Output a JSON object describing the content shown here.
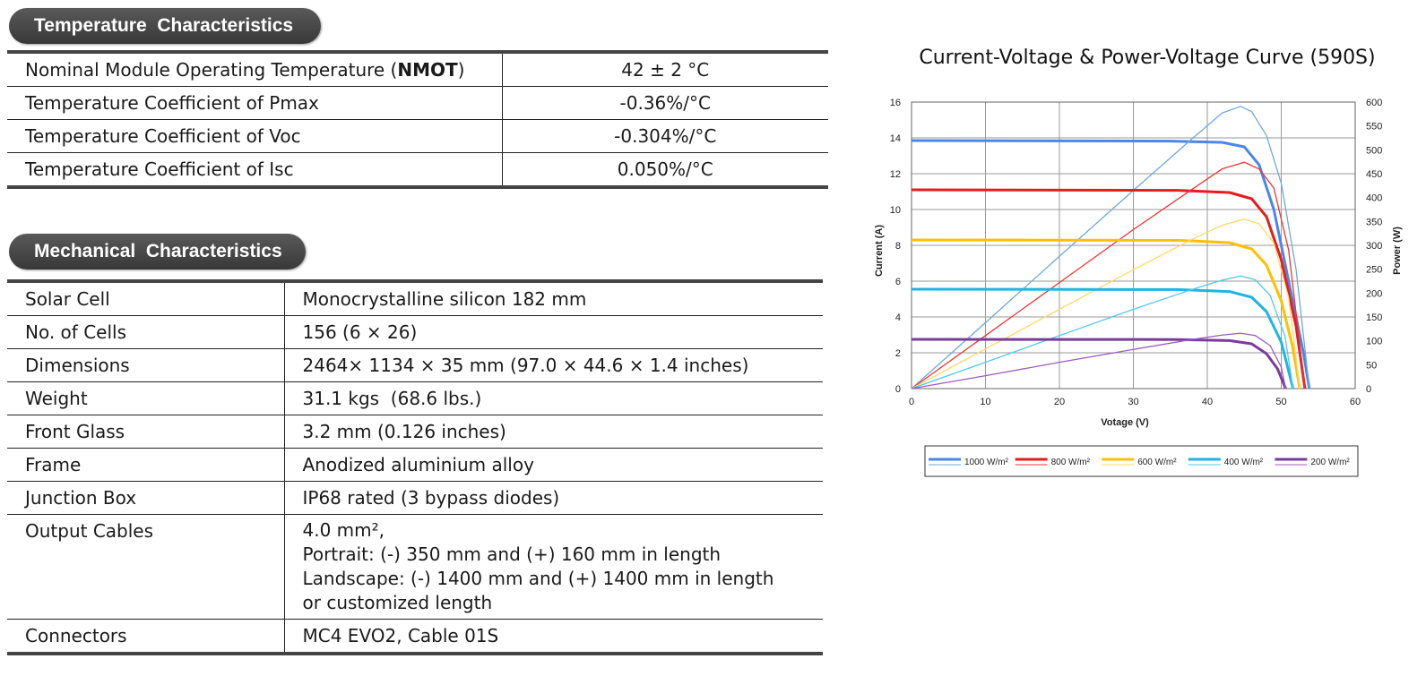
{
  "temperature": {
    "title": "Temperature  Characteristics",
    "rows": [
      {
        "label_pre": "Nominal Module Operating Temperature (",
        "label_bold": "NMOT",
        "label_post": ")",
        "value": "42 ± 2 °C"
      },
      {
        "label": "Temperature Coefficient of Pmax",
        "value": "-0.36%/°C"
      },
      {
        "label": "Temperature Coefficient of Voc",
        "value": "-0.304%/°C"
      },
      {
        "label": "Temperature Coefficient of Isc",
        "value": "0.050%/°C"
      }
    ]
  },
  "mechanical": {
    "title": "Mechanical  Characteristics",
    "rows": [
      {
        "label": "Solar Cell",
        "value": "Monocrystalline silicon 182 mm"
      },
      {
        "label": "No. of Cells",
        "value": "156 (6 × 26)"
      },
      {
        "label": "Dimensions",
        "value": "2464× 1134 × 35 mm (97.0 × 44.6 × 1.4 inches)"
      },
      {
        "label": "Weight",
        "value": "31.1 kgs  (68.6 lbs.)"
      },
      {
        "label": "Front Glass",
        "value": "3.2 mm (0.126 inches)"
      },
      {
        "label": "Frame",
        "value": "Anodized aluminium alloy"
      },
      {
        "label": "Junction Box",
        "value": "IP68 rated (3 bypass diodes)"
      },
      {
        "label": "Output Cables",
        "value_lines": [
          "4.0 mm²,",
          "Portrait: (-) 350 mm and (+) 160 mm in length",
          "Landscape: (-) 1400 mm and (+) 1400 mm in length",
          "or customized length"
        ]
      },
      {
        "label": "Connectors",
        "value": "MC4 EVO2, Cable 01S"
      }
    ]
  },
  "chart_data": {
    "type": "line",
    "title": "Current-Voltage & Power-Voltage Curve (590S)",
    "xlabel": "Votage (V)",
    "ylabel": "Current (A)",
    "y2label": "Power (W)",
    "xlim": [
      0,
      60
    ],
    "ylim": [
      0,
      16
    ],
    "y2lim": [
      0,
      600
    ],
    "xticks": [
      "0",
      "10",
      "20",
      "30",
      "40",
      "50",
      "60"
    ],
    "yticks": [
      "0",
      "2",
      "4",
      "6",
      "8",
      "10",
      "12",
      "14",
      "16"
    ],
    "y2ticks": [
      "0",
      "50",
      "100",
      "150",
      "200",
      "250",
      "300",
      "350",
      "400",
      "450",
      "500",
      "550",
      "600"
    ],
    "grid": true,
    "legend_position": "bottom",
    "series": [
      {
        "name": "1000 W/m²",
        "color": "#4a86e8",
        "power_color": "#6fa8dc",
        "isc": 13.85,
        "voc": 53.8,
        "iv_knee": [
          [
            0,
            13.85
          ],
          [
            35,
            13.82
          ],
          [
            42,
            13.75
          ],
          [
            45,
            13.5
          ],
          [
            47,
            12.5
          ],
          [
            49,
            10
          ],
          [
            51,
            6
          ],
          [
            53,
            2
          ],
          [
            53.8,
            0
          ]
        ],
        "pv": [
          [
            0,
            0
          ],
          [
            10,
            138
          ],
          [
            20,
            277
          ],
          [
            30,
            415
          ],
          [
            38,
            524
          ],
          [
            42,
            577
          ],
          [
            44.5,
            591
          ],
          [
            46,
            580
          ],
          [
            48,
            530
          ],
          [
            50,
            430
          ],
          [
            52,
            250
          ],
          [
            53.8,
            0
          ]
        ]
      },
      {
        "name": "800 W/m²",
        "color": "#e81c1c",
        "power_color": "#ee3333",
        "isc": 11.1,
        "voc": 53.2,
        "iv_knee": [
          [
            0,
            11.1
          ],
          [
            36,
            11.07
          ],
          [
            43,
            10.95
          ],
          [
            46,
            10.6
          ],
          [
            48,
            9.6
          ],
          [
            50,
            7.2
          ],
          [
            52,
            3.5
          ],
          [
            53.2,
            0
          ]
        ],
        "pv": [
          [
            0,
            0
          ],
          [
            10,
            111
          ],
          [
            20,
            222
          ],
          [
            30,
            333
          ],
          [
            38,
            418
          ],
          [
            42,
            460
          ],
          [
            45,
            474
          ],
          [
            47,
            460
          ],
          [
            49,
            420
          ],
          [
            51,
            290
          ],
          [
            53.2,
            0
          ]
        ]
      },
      {
        "name": "600 W/m²",
        "color": "#ffc000",
        "power_color": "#ffd966",
        "isc": 8.3,
        "voc": 52.5,
        "iv_knee": [
          [
            0,
            8.3
          ],
          [
            36,
            8.28
          ],
          [
            43,
            8.15
          ],
          [
            46,
            7.8
          ],
          [
            48,
            6.9
          ],
          [
            50,
            4.9
          ],
          [
            51.5,
            2.4
          ],
          [
            52.5,
            0
          ]
        ],
        "pv": [
          [
            0,
            0
          ],
          [
            10,
            83
          ],
          [
            20,
            166
          ],
          [
            30,
            249
          ],
          [
            38,
            313
          ],
          [
            42,
            342
          ],
          [
            45,
            355
          ],
          [
            47,
            345
          ],
          [
            49,
            305
          ],
          [
            51,
            190
          ],
          [
            52.5,
            0
          ]
        ]
      },
      {
        "name": "400 W/m²",
        "color": "#1eb4e6",
        "power_color": "#4fc9ef",
        "isc": 5.55,
        "voc": 51.6,
        "iv_knee": [
          [
            0,
            5.55
          ],
          [
            36,
            5.53
          ],
          [
            43,
            5.42
          ],
          [
            46,
            5.1
          ],
          [
            48,
            4.3
          ],
          [
            50,
            2.6
          ],
          [
            51.6,
            0
          ]
        ],
        "pv": [
          [
            0,
            0
          ],
          [
            10,
            55
          ],
          [
            20,
            111
          ],
          [
            30,
            166
          ],
          [
            38,
            208
          ],
          [
            42,
            227
          ],
          [
            44.5,
            236
          ],
          [
            46.5,
            228
          ],
          [
            48.5,
            195
          ],
          [
            50.5,
            110
          ],
          [
            51.6,
            0
          ]
        ]
      },
      {
        "name": "200 W/m²",
        "color": "#7a3c9c",
        "power_color": "#9b5cc0",
        "isc": 2.75,
        "voc": 50.6,
        "iv_knee": [
          [
            0,
            2.75
          ],
          [
            36,
            2.74
          ],
          [
            43,
            2.68
          ],
          [
            46,
            2.5
          ],
          [
            48,
            1.95
          ],
          [
            49.5,
            1.1
          ],
          [
            50.6,
            0
          ]
        ],
        "pv": [
          [
            0,
            0
          ],
          [
            10,
            27
          ],
          [
            20,
            55
          ],
          [
            30,
            82
          ],
          [
            38,
            103
          ],
          [
            42,
            112
          ],
          [
            44.5,
            116
          ],
          [
            46.5,
            111
          ],
          [
            48.5,
            90
          ],
          [
            50,
            45
          ],
          [
            50.6,
            0
          ]
        ]
      }
    ]
  }
}
